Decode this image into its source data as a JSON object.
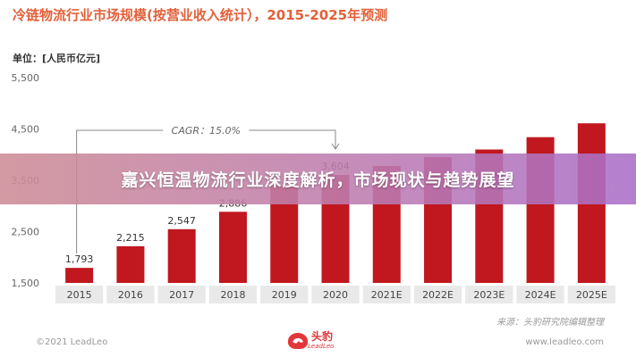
{
  "title": "冷链物流行业市场规模(按营业收入统计），2015-2025年预测",
  "unit_label": "单位：[人民币亿元]",
  "headline": "嘉兴恒温物流行业深度解析，市场现状与趋势展望",
  "source": "来源：头豹研究院编辑整理",
  "footer": {
    "copyright": "©2021 LeadLeo",
    "logo_text": "头豹",
    "logo_sub": "LeadLeo",
    "website": "www.leadleo.com"
  },
  "colors": {
    "bar": "#c0181e",
    "title": "#e2603a",
    "cagr": "#888888"
  },
  "chart_data": {
    "type": "bar",
    "title": "冷链物流行业市场规模(按营业收入统计），2015-2025年预测",
    "ylabel": "单位：[人民币亿元]",
    "categories": [
      "2015",
      "2016",
      "2017",
      "2018",
      "2019",
      "2020",
      "2021E",
      "2022E",
      "2023E",
      "2024E",
      "2025E"
    ],
    "values": [
      1793,
      2215,
      2547,
      2886,
      3391,
      3604,
      3780,
      3950,
      4100,
      4340,
      4610
    ],
    "labels": [
      "1,793",
      "2,215",
      "2,547",
      "2,886",
      "",
      "3,604",
      "",
      "",
      "",
      "",
      ""
    ],
    "yticks": [
      "1,500",
      "2,500",
      "3,500",
      "4,500",
      "5,500"
    ],
    "ytick_values": [
      1500,
      2500,
      3500,
      4500,
      5500
    ],
    "ylim": [
      1500,
      5500
    ],
    "grid": false,
    "annotation": {
      "text": "CAGR：15.0%",
      "from": "2015",
      "to": "2020"
    }
  }
}
